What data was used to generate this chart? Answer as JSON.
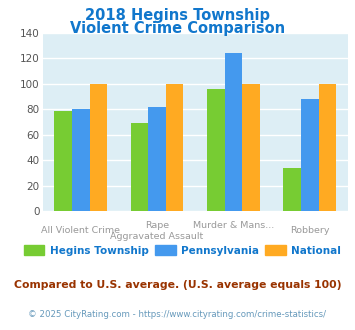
{
  "title_line1": "2018 Hegins Township",
  "title_line2": "Violent Crime Comparison",
  "cat_labels_row1": [
    "",
    "Rape",
    "Murder & Mans...",
    ""
  ],
  "cat_labels_row2": [
    "All Violent Crime",
    "Aggravated Assault",
    "",
    "Robbery"
  ],
  "hegins": [
    79,
    69,
    96,
    34
  ],
  "pennsylvania": [
    80,
    82,
    124,
    88
  ],
  "national": [
    100,
    100,
    100,
    100
  ],
  "hegins_color": "#77cc33",
  "pennsylvania_color": "#4499ee",
  "national_color": "#ffaa22",
  "ylim": [
    0,
    140
  ],
  "yticks": [
    0,
    20,
    40,
    60,
    80,
    100,
    120,
    140
  ],
  "plot_bg": "#ddeef5",
  "title_color": "#1177cc",
  "legend_labels": [
    "Hegins Township",
    "Pennsylvania",
    "National"
  ],
  "footnote1": "Compared to U.S. average. (U.S. average equals 100)",
  "footnote2": "© 2025 CityRating.com - https://www.cityrating.com/crime-statistics/",
  "footnote1_color": "#993300",
  "footnote2_color": "#6699bb",
  "label_color": "#999999"
}
